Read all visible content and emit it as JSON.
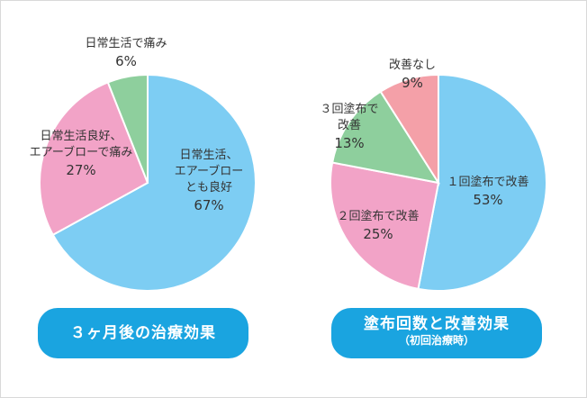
{
  "colors": {
    "blue": "#7dcdf3",
    "pink": "#f2a3c7",
    "green": "#8ecf9d",
    "rose": "#f4a0a8",
    "button": "#1aa4e0"
  },
  "chart_data": [
    {
      "type": "pie",
      "title": "３ヶ月後の治療効果",
      "slices": [
        {
          "label_lines": [
            "日常生活、",
            "エアーブロー",
            "とも良好"
          ],
          "value": 67,
          "value_label": "67%",
          "color": "#7dcdf3"
        },
        {
          "label_lines": [
            "日常生活良好、",
            "エアーブローで痛み"
          ],
          "value": 27,
          "value_label": "27%",
          "color": "#f2a3c7"
        },
        {
          "label_lines": [
            "日常生活で痛み"
          ],
          "value": 6,
          "value_label": "6%",
          "color": "#8ecf9d"
        }
      ]
    },
    {
      "type": "pie",
      "title": "塗布回数と改善効果",
      "subtitle": "（初回治療時）",
      "slices": [
        {
          "label_lines": [
            "１回塗布で改善"
          ],
          "value": 53,
          "value_label": "53%",
          "color": "#7dcdf3"
        },
        {
          "label_lines": [
            "２回塗布で改善"
          ],
          "value": 25,
          "value_label": "25%",
          "color": "#f2a3c7"
        },
        {
          "label_lines": [
            "３回塗布で",
            "改善"
          ],
          "value": 13,
          "value_label": "13%",
          "color": "#8ecf9d"
        },
        {
          "label_lines": [
            "改善なし"
          ],
          "value": 9,
          "value_label": "9%",
          "color": "#f4a0a8"
        }
      ]
    }
  ]
}
